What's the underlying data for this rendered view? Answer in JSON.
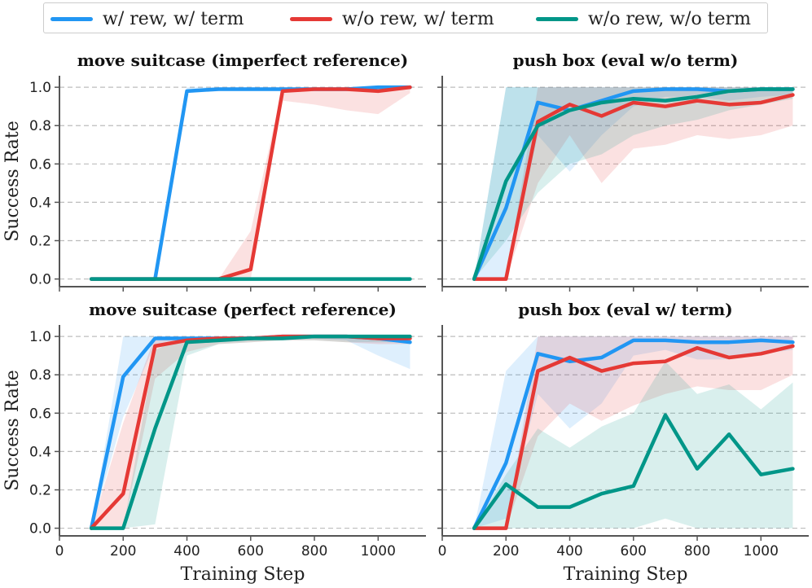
{
  "legend": [
    {
      "label": "w/ rew, w/ term",
      "color": "#2196f3"
    },
    {
      "label": "w/o rew, w/ term",
      "color": "#e53935"
    },
    {
      "label": "w/o rew, w/o term",
      "color": "#009688"
    }
  ],
  "shared_axes": {
    "ylabel": "Success Rate",
    "xlabel": "Training Step",
    "xlim": [
      0,
      1150
    ],
    "ylim": [
      -0.04,
      1.06
    ],
    "xticks": [
      0,
      200,
      400,
      600,
      800,
      1000
    ],
    "yticks": [
      0.0,
      0.2,
      0.4,
      0.6,
      0.8,
      1.0
    ],
    "grid": "horizontal dashed"
  },
  "chart_data": [
    {
      "type": "line",
      "title": "move suitcase (imperfect reference)",
      "x": [
        100,
        200,
        300,
        400,
        500,
        600,
        700,
        800,
        900,
        1000,
        1100
      ],
      "series": [
        {
          "name": "w/ rew, w/ term",
          "values": [
            0,
            0,
            0,
            0.98,
            0.99,
            0.99,
            0.99,
            0.99,
            0.99,
            1.0,
            1.0
          ],
          "band_low": [
            0,
            0,
            0,
            0.97,
            0.98,
            0.98,
            0.98,
            0.98,
            0.98,
            0.99,
            0.99
          ],
          "band_high": [
            0,
            0,
            0,
            1.0,
            1.0,
            1.0,
            1.0,
            1.0,
            1.0,
            1.0,
            1.0
          ]
        },
        {
          "name": "w/o rew, w/ term",
          "values": [
            0,
            0,
            0,
            0,
            0,
            0.05,
            0.98,
            0.99,
            0.99,
            0.98,
            1.0
          ],
          "band_low": [
            0,
            0,
            0,
            0,
            0,
            0,
            0.93,
            0.91,
            0.88,
            0.86,
            0.97
          ],
          "band_high": [
            0,
            0,
            0,
            0,
            0,
            0.25,
            1.0,
            1.0,
            1.0,
            1.0,
            1.0
          ]
        },
        {
          "name": "w/o rew, w/o term",
          "values": [
            0,
            0,
            0,
            0,
            0,
            0,
            0,
            0,
            0,
            0,
            0
          ],
          "band_low": [
            0,
            0,
            0,
            0,
            0,
            0,
            0,
            0,
            0,
            0,
            0
          ],
          "band_high": [
            0,
            0,
            0,
            0,
            0,
            0,
            0,
            0,
            0,
            0,
            0
          ]
        }
      ]
    },
    {
      "type": "line",
      "title": "push box (eval w/o term)",
      "x": [
        100,
        200,
        300,
        400,
        500,
        600,
        700,
        800,
        900,
        1000,
        1100
      ],
      "series": [
        {
          "name": "w/ rew, w/ term",
          "values": [
            0,
            0.37,
            0.92,
            0.88,
            0.93,
            0.98,
            0.99,
            0.99,
            0.98,
            0.99,
            0.99
          ],
          "band_low": [
            0,
            0,
            0.75,
            0.56,
            0.75,
            0.9,
            0.95,
            0.95,
            0.93,
            0.95,
            0.96
          ],
          "band_high": [
            0,
            1.0,
            1.0,
            1.0,
            1.0,
            1.0,
            1.0,
            1.0,
            1.0,
            1.0,
            1.0
          ]
        },
        {
          "name": "w/o rew, w/ term",
          "values": [
            0,
            0,
            0.82,
            0.91,
            0.85,
            0.92,
            0.9,
            0.93,
            0.91,
            0.92,
            0.96
          ],
          "band_low": [
            0,
            0,
            0.5,
            0.75,
            0.5,
            0.68,
            0.7,
            0.75,
            0.73,
            0.75,
            0.8
          ],
          "band_high": [
            0,
            0,
            1.0,
            1.0,
            1.0,
            1.0,
            1.0,
            1.0,
            1.0,
            1.0,
            1.0
          ]
        },
        {
          "name": "w/o rew, w/o term",
          "values": [
            0,
            0.51,
            0.8,
            0.88,
            0.92,
            0.94,
            0.93,
            0.95,
            0.98,
            0.99,
            0.99
          ],
          "band_low": [
            0,
            0.2,
            0.45,
            0.6,
            0.65,
            0.75,
            0.8,
            0.83,
            0.88,
            0.91,
            0.94
          ],
          "band_high": [
            0,
            1.0,
            1.0,
            1.0,
            1.0,
            1.0,
            1.0,
            1.0,
            1.0,
            1.0,
            1.0
          ]
        }
      ]
    },
    {
      "type": "line",
      "title": "move suitcase (perfect reference)",
      "x": [
        100,
        200,
        300,
        400,
        500,
        600,
        700,
        800,
        900,
        1000,
        1100
      ],
      "series": [
        {
          "name": "w/ rew, w/ term",
          "values": [
            0,
            0.79,
            0.99,
            0.99,
            0.99,
            0.99,
            1.0,
            1.0,
            1.0,
            0.99,
            0.97
          ],
          "band_low": [
            0,
            0.58,
            0.96,
            0.97,
            0.97,
            0.98,
            0.99,
            0.99,
            0.98,
            0.9,
            0.83
          ],
          "band_high": [
            0,
            1.0,
            1.0,
            1.0,
            1.0,
            1.0,
            1.0,
            1.0,
            1.0,
            1.0,
            1.0
          ]
        },
        {
          "name": "w/o rew, w/ term",
          "values": [
            0,
            0.18,
            0.95,
            0.98,
            0.99,
            0.99,
            1.0,
            1.0,
            1.0,
            0.99,
            0.99
          ],
          "band_low": [
            0,
            0,
            0.78,
            0.92,
            0.96,
            0.97,
            0.98,
            0.98,
            0.97,
            0.96,
            0.96
          ],
          "band_high": [
            0,
            0.55,
            1.0,
            1.0,
            1.0,
            1.0,
            1.0,
            1.0,
            1.0,
            1.0,
            1.0
          ]
        },
        {
          "name": "w/o rew, w/o term",
          "values": [
            0,
            0,
            0.52,
            0.97,
            0.98,
            0.99,
            0.99,
            1.0,
            1.0,
            1.0,
            1.0
          ],
          "band_low": [
            0,
            0,
            0.02,
            0.9,
            0.96,
            0.97,
            0.98,
            0.98,
            0.97,
            0.97,
            0.97
          ],
          "band_high": [
            0,
            0,
            0.93,
            1.0,
            1.0,
            1.0,
            1.0,
            1.0,
            1.0,
            1.0,
            1.0
          ]
        }
      ]
    },
    {
      "type": "line",
      "title": "push box (eval w/ term)",
      "x": [
        100,
        200,
        300,
        400,
        500,
        600,
        700,
        800,
        900,
        1000,
        1100
      ],
      "series": [
        {
          "name": "w/ rew, w/ term",
          "values": [
            0,
            0.34,
            0.91,
            0.87,
            0.89,
            0.98,
            0.98,
            0.97,
            0.97,
            0.98,
            0.97
          ],
          "band_low": [
            0,
            0.05,
            0.7,
            0.52,
            0.65,
            0.9,
            0.93,
            0.88,
            0.88,
            0.91,
            0.93
          ],
          "band_high": [
            0,
            0.82,
            1.0,
            1.0,
            1.0,
            1.0,
            1.0,
            1.0,
            1.0,
            1.0,
            1.0
          ]
        },
        {
          "name": "w/o rew, w/ term",
          "values": [
            0,
            0,
            0.82,
            0.89,
            0.82,
            0.86,
            0.87,
            0.94,
            0.89,
            0.91,
            0.95
          ],
          "band_low": [
            0,
            0,
            0.48,
            0.65,
            0.56,
            0.64,
            0.7,
            0.74,
            0.72,
            0.72,
            0.8
          ],
          "band_high": [
            0,
            0,
            1.0,
            1.0,
            1.0,
            1.0,
            1.0,
            1.0,
            1.0,
            1.0,
            1.0
          ]
        },
        {
          "name": "w/o rew, w/o term",
          "values": [
            0,
            0.23,
            0.11,
            0.11,
            0.18,
            0.22,
            0.59,
            0.31,
            0.49,
            0.28,
            0.31
          ],
          "band_low": [
            0,
            0,
            0,
            0,
            0,
            0,
            0.05,
            0,
            0,
            0,
            0
          ],
          "band_high": [
            0,
            0.28,
            0.52,
            0.42,
            0.53,
            0.6,
            0.87,
            0.7,
            0.75,
            0.62,
            0.76
          ]
        }
      ]
    }
  ]
}
